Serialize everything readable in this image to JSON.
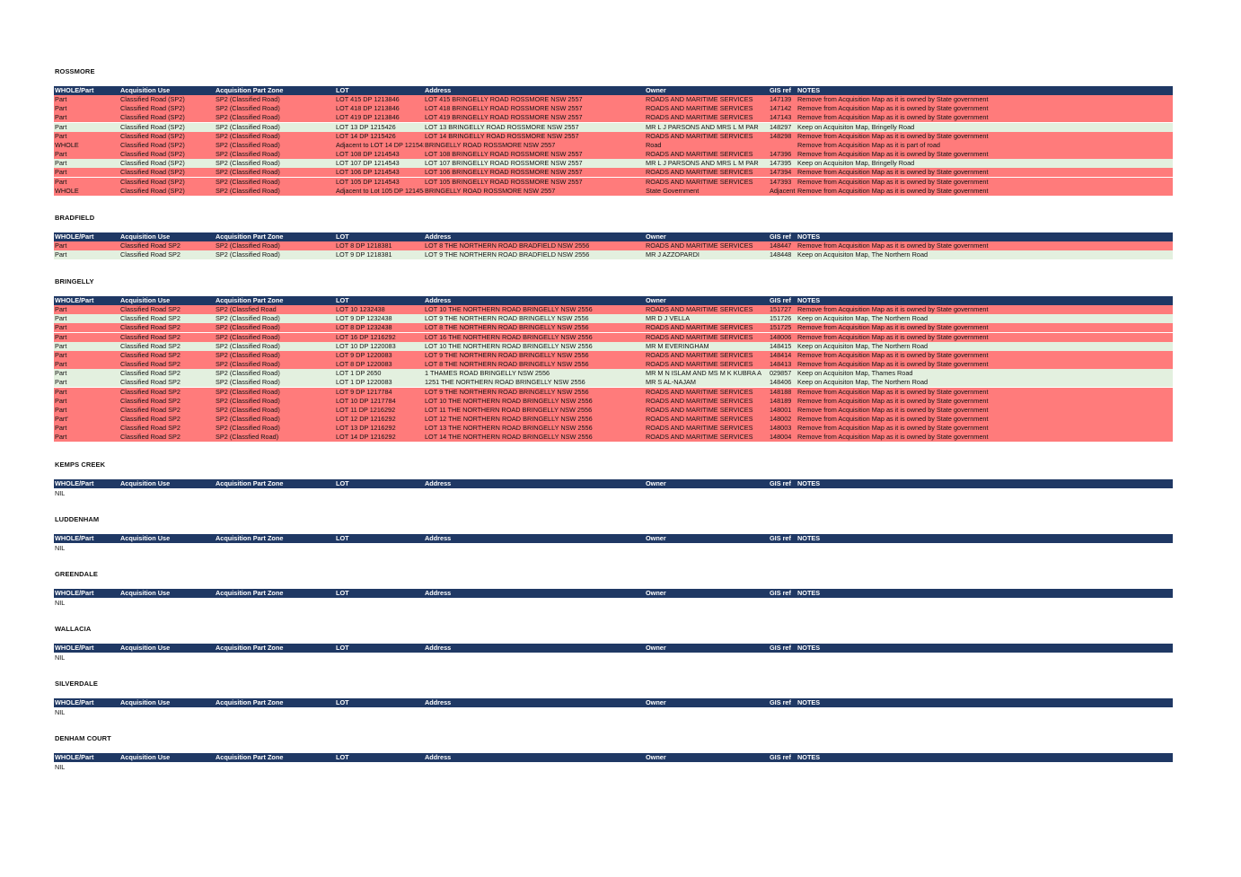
{
  "headers": [
    "WHOLE/Part",
    "Acquisition Use",
    "Acquisition Part Zone",
    "LOT",
    "Address",
    "Owner",
    "GIS ref",
    "NOTES"
  ],
  "colors": {
    "header_bg": "#1f3864",
    "remove_row": "#ff7b7b",
    "keep_row": "#e3f0df"
  },
  "sections": [
    {
      "title": "ROSSMORE",
      "rows": [
        {
          "s": "red",
          "cells": [
            "Part",
            "Classified Road (SP2)",
            "SP2 (Classified Road)",
            "LOT 415 DP 1213846",
            "LOT 415 BRINGELLY ROAD ROSSMORE NSW 2557",
            "ROADS AND MARITIME SERVICES",
            "147139",
            "Remove from Acquisition Map as it is owned by State government"
          ]
        },
        {
          "s": "red",
          "cells": [
            "Part",
            "Classified Road (SP2)",
            "SP2 (Classified Road)",
            "LOT 418 DP 1213846",
            "LOT 418 BRINGELLY ROAD   ROSSMORE  NSW  2557",
            "ROADS AND MARITIME SERVICES",
            "147142",
            "Remove from Acquisition Map as it is owned by State government"
          ]
        },
        {
          "s": "red",
          "cells": [
            "Part",
            "Classified Road (SP2)",
            "SP2 (Classified Road)",
            "LOT 419 DP 1213846",
            "LOT 419 BRINGELLY ROAD ROSSMORE NSW 2557",
            "ROADS AND MARITIME SERVICES",
            "147143",
            "Remove from Acquisition Map as it is owned by State government"
          ]
        },
        {
          "s": "green",
          "cells": [
            "Part",
            "Classified Road (SP2)",
            "SP2 (Classified Road)",
            "LOT 13 DP 1215426",
            "LOT 13 BRINGELLY ROAD ROSSMORE NSW 2557",
            "MR L J PARSONS AND MRS L M PAR",
            "148297",
            "Keep on Acquisiton Map, Bringelly Road"
          ]
        },
        {
          "s": "red",
          "cells": [
            "Part",
            "Classified Road (SP2)",
            "SP2 (Classified Road)",
            "LOT 14 DP 1215426",
            "LOT 14 BRINGELLY ROAD ROSSMORE NSW 2557",
            "ROADS AND MARITIME SERVICES",
            "148298",
            "Remove from Acquisition Map as it is owned by State government"
          ]
        },
        {
          "s": "red",
          "cells": [
            "WHOLE",
            "Classified Road (SP2)",
            "SP2 (Classified Road)",
            "Adjacent to LOT 14 DP 1215426",
            "BRINGELLY ROAD ROSSMORE NSW 2557",
            "Road",
            "",
            "Remove from Acquisition Map as it is part of road"
          ]
        },
        {
          "s": "red",
          "cells": [
            "Part",
            "Classified Road (SP2)",
            "SP2 (Classified Road)",
            "LOT 108 DP 1214543",
            "LOT 108 BRINGELLY ROAD ROSSMORE NSW 2557",
            "ROADS AND MARITIME SERVICES",
            "147396",
            "Remove from Acquisition Map as it is owned by State government"
          ]
        },
        {
          "s": "green",
          "cells": [
            "Part",
            "Classified Road (SP2)",
            "SP2 (Classified Road)",
            "LOT 107 DP 1214543",
            "LOT 107 BRINGELLY ROAD ROSSMORE NSW 2557",
            "MR L J PARSONS AND MRS L M PAR",
            "147395",
            "Keep on Acquisiton Map, Bringelly Road"
          ]
        },
        {
          "s": "red",
          "cells": [
            "Part",
            "Classified Road (SP2)",
            "SP2 (Classified Road)",
            "LOT 106 DP 1214543",
            "LOT 106 BRINGELLY ROAD ROSSMORE NSW 2557",
            "ROADS AND MARITIME SERVICES",
            "147394",
            "Remove from Acquisition Map as it is owned by State government"
          ]
        },
        {
          "s": "red",
          "cells": [
            "Part",
            "Classified Road (SP2)",
            "SP2 (Classified Road)",
            "LOT 105 DP 1214543",
            "LOT 105 BRINGELLY ROAD ROSSMORE  NSW 2557",
            "ROADS AND MARITIME SERVICES",
            "147393",
            "Remove from Acquisition Map as it is owned by State government"
          ]
        },
        {
          "s": "red",
          "cells": [
            "WHOLE",
            "Classified Road (SP2)",
            "SP2 (Classified Road)",
            "Adjacent to Lot 105 DP 1214543",
            "BRINGELLY ROAD ROSSMORE NSW 2557",
            "State Government",
            "Adjacent",
            "Remove from Acquisition Map as it is owned by State government"
          ]
        }
      ]
    },
    {
      "title": "BRADFIELD",
      "rows": [
        {
          "s": "red",
          "cells": [
            "Part",
            "Classified Road SP2",
            "SP2 (Classified Road)",
            "LOT 8 DP 1218381",
            "LOT 8 THE NORTHERN ROAD BRADFIELD NSW 2556",
            "ROADS AND MARITIME SERVICES",
            "148447",
            "Remove from Acquisition Map as it is owned by State government"
          ]
        },
        {
          "s": "green",
          "cells": [
            "Part",
            "Classified Road SP2",
            "SP2 (Classified Road)",
            "LOT 9 DP 1218381",
            "LOT 9 THE NORTHERN ROAD BRADFIELD NSW 2556",
            "MR J AZZOPARDI",
            "148448",
            "Keep on Acquisiton Map, The Northern Road"
          ]
        }
      ]
    },
    {
      "title": "BRINGELLY",
      "rows": [
        {
          "s": "red",
          "cells": [
            "Part",
            "Classified Road SP2",
            "SP2 (Classfied Road",
            "LOT 10 1232438",
            "LOT 10 THE NORTHERN ROAD   BRINGELLY NSW 2556",
            "ROADS AND MARITIME SERVICES",
            "151727",
            "Remove from Acquisition Map as it is owned by State government"
          ]
        },
        {
          "s": "green",
          "cells": [
            "Part",
            "Classified Road SP2",
            "SP2 (Classified Road)",
            "LOT 9 DP 1232438",
            "LOT 9 THE NORTHERN ROAD BRINGELLY NSW 2556",
            "MR D J VELLA",
            "151726",
            "Keep on Acquisiton Map, The Northern Road"
          ]
        },
        {
          "s": "red",
          "cells": [
            "Part",
            "Classified Road SP2",
            "SP2 (Classified Road)",
            "LOT 8 DP 1232438",
            "LOT 8 THE NORTHERN ROAD BRINGELLY NSW 2556",
            "ROADS AND MARITIME SERVICES",
            "151725",
            "Remove from Acquisition Map as it is owned by State government"
          ]
        },
        {
          "s": "red",
          "cells": [
            "Part",
            "Classified Road SP2",
            "SP2 (Classified Road)",
            "LOT 16 DP 1216292",
            "LOT 16 THE NORTHERN ROAD   BRINGELLY NSW 2556",
            "ROADS AND MARITIME SERVICES",
            "148006",
            "Remove from Acquisition Map as it is owned by State government"
          ]
        },
        {
          "s": "green",
          "cells": [
            "Part",
            "Classified Road SP2",
            "SP2 (Classified Road)",
            "LOT 10 DP 1220083",
            "LOT 10 THE NORTHERN ROAD BRINGELLY NSW 2556",
            "MR M EVERINGHAM",
            "148415",
            "Keep on Acquisiton Map, The Northern Road"
          ]
        },
        {
          "s": "red",
          "cells": [
            "Part",
            "Classified Road SP2",
            "SP2 (Classified Road)",
            "LOT 9 DP 1220083",
            "LOT 9 THE NORTHERN ROAD   BRINGELLY NSW 2556",
            "ROADS AND MARITIME SERVICES",
            "148414",
            "Remove from Acquisition Map as it is owned by State government"
          ]
        },
        {
          "s": "red",
          "cells": [
            "Part",
            "Classified Road SP2",
            "SP2 (Classified Road)",
            "LOT 8 DP 1220083",
            "LOT 8 THE NORTHERN ROAD BRINGELLY NSW 2556",
            "ROADS AND MARITIME SERVICES",
            "148413",
            "Remove from Acquisition Map as it is owned by State government"
          ]
        },
        {
          "s": "green",
          "cells": [
            "Part",
            "Classified Road SP2",
            "SP2 (Classified Road)",
            "LOT 1 DP 2650",
            "1 THAMES ROAD BRINGELLY NSW 2556",
            "MR M N ISLAM AND MS M K KUBRA A",
            "029857",
            "Keep on Acquisiton Map, Thames Road"
          ]
        },
        {
          "s": "green",
          "cells": [
            "Part",
            "Classified Road SP2",
            "SP2 (Classified Road)",
            "LOT 1 DP 1220083",
            "1251 THE NORTHERN ROAD BRINGELLY NSW 2556",
            "MR S AL-NAJAM",
            "148406",
            "Keep on Acquisiton Map, The Northern Road"
          ]
        },
        {
          "s": "red",
          "cells": [
            "Part",
            "Classified Road SP2",
            "SP2 (Classified Road)",
            "LOT 9 DP 1217784",
            "LOT 9 THE NORTHERN ROAD   BRINGELLY NSW 2556",
            "ROADS AND MARITIME SERVICES",
            "148188",
            "Remove from Acquisition Map as it is owned by State government"
          ]
        },
        {
          "s": "red",
          "cells": [
            "Part",
            "Classified Road SP2",
            "SP2 (Classified Road)",
            "LOT 10 DP 1217784",
            "LOT 10 THE NORTHERN ROAD   BRINGELLY NSW 2556",
            "ROADS AND MARITIME SERVICES",
            "148189",
            "Remove from Acquisition Map as it is owned by State government"
          ]
        },
        {
          "s": "red",
          "cells": [
            "Part",
            "Classified Road SP2",
            "SP2 (Classified Road)",
            "LOT 11 DP 1216292",
            "LOT 11 THE NORTHERN ROAD   BRINGELLY NSW 2556",
            "ROADS AND MARITIME SERVICES",
            "148001",
            "Remove from Acquisition Map as it is owned by State government"
          ]
        },
        {
          "s": "red",
          "cells": [
            "Part'",
            "Classified Road SP2",
            "SP2 (Classified Road)",
            "LOT 12 DP 1216292",
            "LOT 12 THE NORTHERN ROAD   BRINGELLY NSW 2556",
            "ROADS AND MARITIME SERVICES",
            "148002",
            "Remove from Acquisition Map as it is owned by State government"
          ]
        },
        {
          "s": "red",
          "cells": [
            "Part",
            "Classified Road SP2",
            "SP2 (Classified Road)",
            "LOT 13 DP 1216292",
            "LOT 13 THE NORTHERN ROAD   BRINGELLY NSW 2556",
            "ROADS AND MARITIME SERVICES",
            "148003",
            "Remove from Acquisition Map as it is owned by State government"
          ]
        },
        {
          "s": "red",
          "cells": [
            "Part",
            "Classified Road SP2",
            "SP2 (Classfied Road)",
            "LOT 14 DP 1216292",
            "LOT 14 THE NORTHERN ROAD BRINGELLY NSW 2556",
            "ROADS AND MARITIME SERVICES",
            "148004",
            "Remove from Acquisition Map as it is owned by State government"
          ]
        }
      ]
    },
    {
      "title": "KEMPS CREEK",
      "rows": [],
      "empty": "NIL"
    },
    {
      "title": "LUDDENHAM",
      "rows": [],
      "empty": "NIL"
    },
    {
      "title": "GREENDALE",
      "rows": [],
      "empty": "NIL"
    },
    {
      "title": "WALLACIA",
      "rows": [],
      "empty": "NIL"
    },
    {
      "title": "SILVERDALE",
      "rows": [],
      "empty": "NIL"
    },
    {
      "title": "DENHAM COURT",
      "rows": [],
      "empty": "NIL"
    }
  ]
}
